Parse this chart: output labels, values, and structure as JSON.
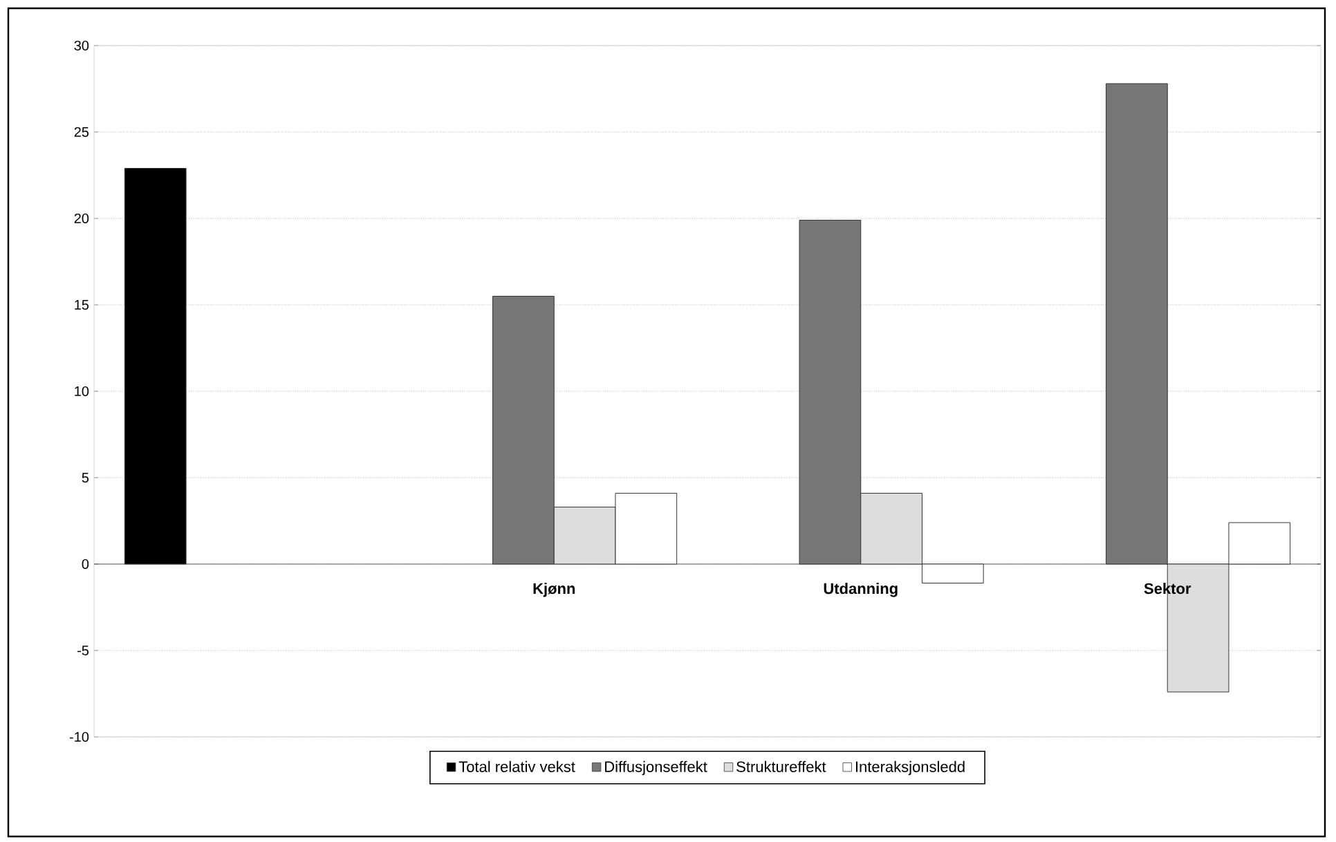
{
  "chart_data": {
    "type": "bar",
    "categories": [
      null,
      "Kjønn",
      "Utdanning",
      "Sektor"
    ],
    "series": [
      {
        "name": "Total relativ vekst",
        "color": "#000000",
        "values": [
          22.9,
          null,
          null,
          null
        ]
      },
      {
        "name": "Diffusjonseffekt",
        "color": "#777777",
        "values": [
          null,
          15.5,
          19.9,
          27.8
        ]
      },
      {
        "name": "Struktureffekt",
        "color": "#dddddd",
        "values": [
          null,
          3.3,
          4.1,
          -7.4
        ]
      },
      {
        "name": "Interaksjonsledd",
        "color": "#ffffff",
        "values": [
          null,
          4.1,
          -1.1,
          2.4
        ]
      }
    ],
    "ylim": [
      -10,
      30
    ],
    "yticks": [
      -10,
      -5,
      0,
      5,
      10,
      15,
      20,
      25,
      30
    ],
    "grid": "y",
    "legend": "bottom"
  }
}
